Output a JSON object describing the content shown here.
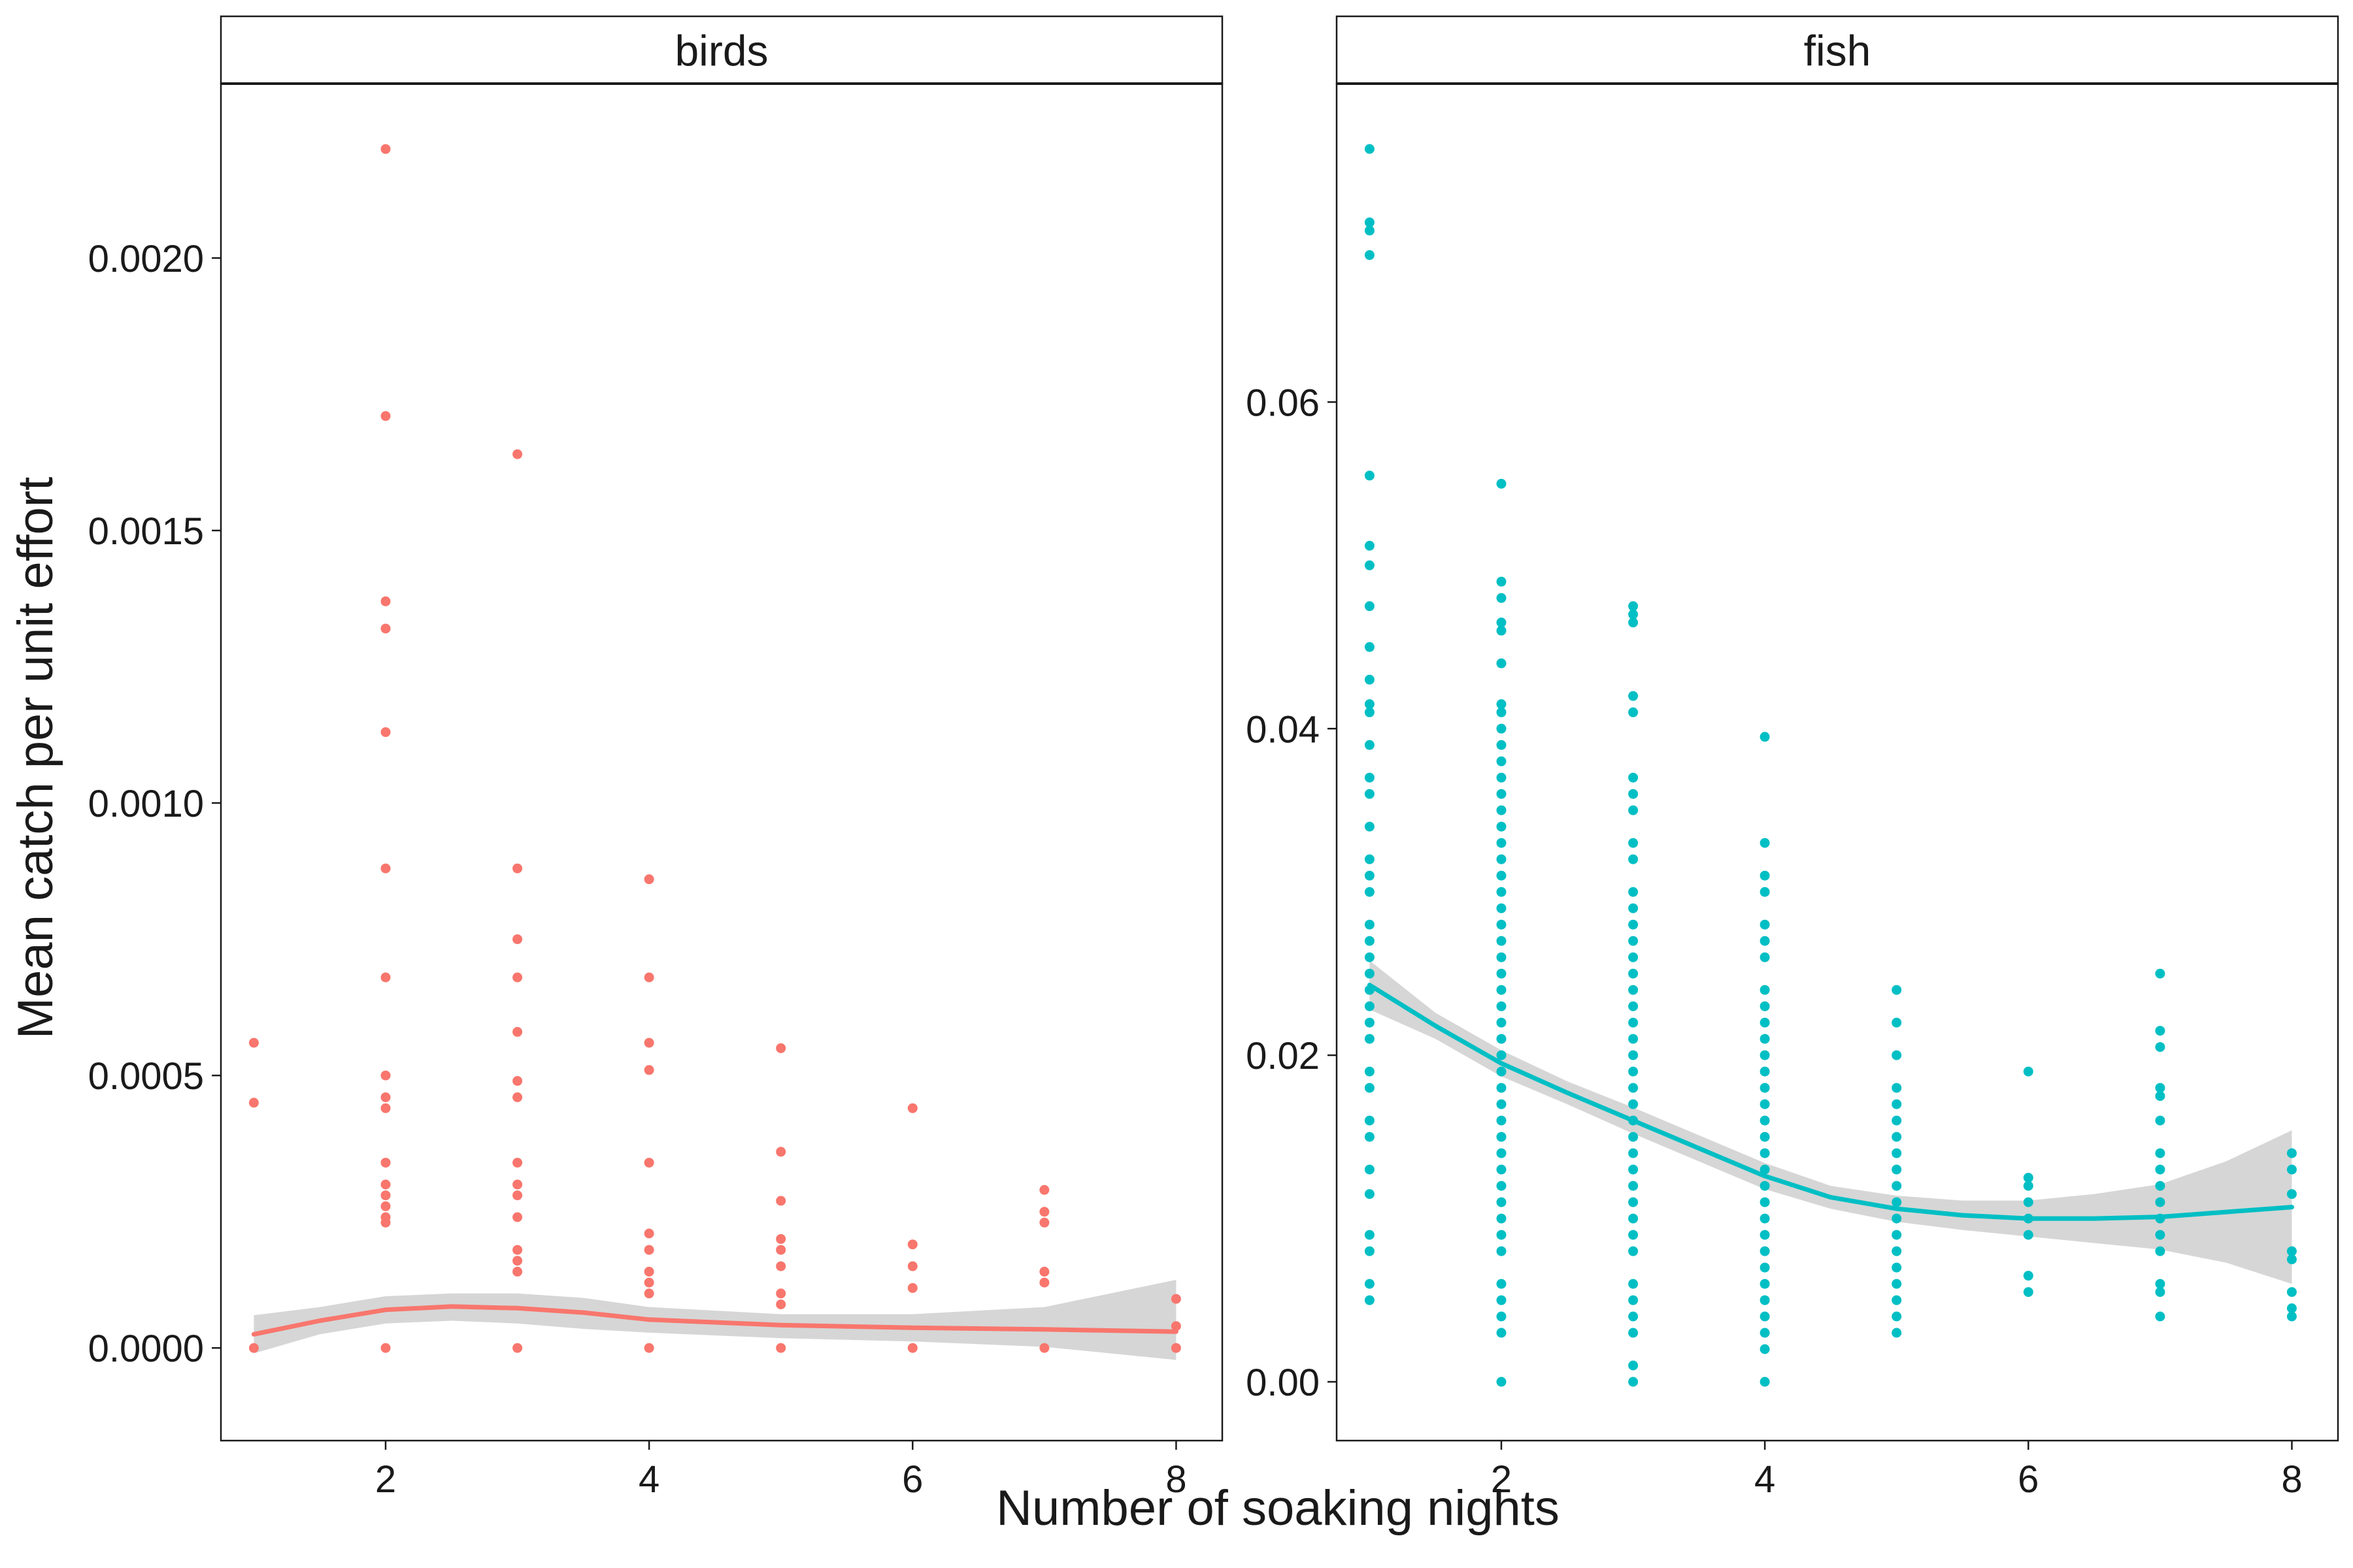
{
  "figure": {
    "xlabel": "Number of soaking nights",
    "ylabel": "Mean catch per unit effort"
  },
  "colors": {
    "birds": "#F8766D",
    "fish": "#00BFC4",
    "ribbon": "#d6d6d6",
    "strip_fill": "#ffffff",
    "panel_border": "#1a1a1a"
  },
  "chart_data": [
    {
      "type": "scatter",
      "panel": "birds",
      "title": "birds",
      "xlim": [
        0.75,
        8.35
      ],
      "ylim": [
        -0.00017,
        0.00232
      ],
      "xticks": [
        2,
        4,
        6,
        8
      ],
      "xtick_labels": [
        "2",
        "4",
        "6",
        "8"
      ],
      "yticks": [
        0,
        0.0005,
        0.001,
        0.0015,
        0.002
      ],
      "ytick_labels": [
        "0.0000",
        "0.0005",
        "0.0010",
        "0.0015",
        "0.0020"
      ],
      "grid": false,
      "points": [
        [
          1,
          0
        ],
        [
          1,
          0.00045
        ],
        [
          1,
          0.00056
        ],
        [
          2,
          0
        ],
        [
          2,
          0.00023
        ],
        [
          2,
          0.00024
        ],
        [
          2,
          0.00026
        ],
        [
          2,
          0.00028
        ],
        [
          2,
          0.0003
        ],
        [
          2,
          0.00034
        ],
        [
          2,
          0.00044
        ],
        [
          2,
          0.00046
        ],
        [
          2,
          0.0005
        ],
        [
          2,
          0.00068
        ],
        [
          2,
          0.00088
        ],
        [
          2,
          0.00113
        ],
        [
          2,
          0.00132
        ],
        [
          2,
          0.00137
        ],
        [
          2,
          0.00171
        ],
        [
          2,
          0.0022
        ],
        [
          3,
          0
        ],
        [
          3,
          0.00014
        ],
        [
          3,
          0.00016
        ],
        [
          3,
          0.00018
        ],
        [
          3,
          0.00024
        ],
        [
          3,
          0.00028
        ],
        [
          3,
          0.0003
        ],
        [
          3,
          0.00034
        ],
        [
          3,
          0.00046
        ],
        [
          3,
          0.00049
        ],
        [
          3,
          0.00058
        ],
        [
          3,
          0.00068
        ],
        [
          3,
          0.00075
        ],
        [
          3,
          0.00088
        ],
        [
          3,
          0.00164
        ],
        [
          4,
          0
        ],
        [
          4,
          0.0001
        ],
        [
          4,
          0.00012
        ],
        [
          4,
          0.00014
        ],
        [
          4,
          0.00018
        ],
        [
          4,
          0.00021
        ],
        [
          4,
          0.00034
        ],
        [
          4,
          0.00051
        ],
        [
          4,
          0.00056
        ],
        [
          4,
          0.00068
        ],
        [
          4,
          0.00086
        ],
        [
          5,
          0
        ],
        [
          5,
          8e-05
        ],
        [
          5,
          0.0001
        ],
        [
          5,
          0.00015
        ],
        [
          5,
          0.00018
        ],
        [
          5,
          0.0002
        ],
        [
          5,
          0.00027
        ],
        [
          5,
          0.00036
        ],
        [
          5,
          0.00055
        ],
        [
          6,
          0
        ],
        [
          6,
          0.00011
        ],
        [
          6,
          0.00015
        ],
        [
          6,
          0.00019
        ],
        [
          6,
          0.00044
        ],
        [
          7,
          0
        ],
        [
          7,
          0.00012
        ],
        [
          7,
          0.00014
        ],
        [
          7,
          0.00023
        ],
        [
          7,
          0.00025
        ],
        [
          7,
          0.00029
        ],
        [
          8,
          0
        ],
        [
          8,
          4e-05
        ],
        [
          8,
          9e-05
        ]
      ],
      "smooth": {
        "x": [
          1,
          1.5,
          2,
          2.5,
          3,
          3.5,
          4,
          5,
          6,
          7,
          8
        ],
        "y": [
          2.5e-05,
          5e-05,
          7e-05,
          7.6e-05,
          7.3e-05,
          6.5e-05,
          5.2e-05,
          4.2e-05,
          3.7e-05,
          3.4e-05,
          3e-05
        ],
        "lower": [
          -1e-05,
          2.5e-05,
          4.5e-05,
          5e-05,
          4.5e-05,
          3.5e-05,
          2.8e-05,
          1.8e-05,
          1.2e-05,
          2e-06,
          -2.2e-05
        ],
        "upper": [
          6e-05,
          7.5e-05,
          9.5e-05,
          0.0001,
          0.0001,
          9.2e-05,
          7.5e-05,
          6.2e-05,
          6.2e-05,
          7.5e-05,
          0.000125
        ]
      }
    },
    {
      "type": "scatter",
      "panel": "fish",
      "title": "fish",
      "xlim": [
        0.75,
        8.35
      ],
      "ylim": [
        -0.0036,
        0.0795
      ],
      "xticks": [
        2,
        4,
        6,
        8
      ],
      "xtick_labels": [
        "2",
        "4",
        "6",
        "8"
      ],
      "yticks": [
        0,
        0.02,
        0.04,
        0.06
      ],
      "ytick_labels": [
        "0.00",
        "0.02",
        "0.04",
        "0.06"
      ],
      "grid": false,
      "points": [
        [
          1,
          0.005
        ],
        [
          1,
          0.006
        ],
        [
          1,
          0.008
        ],
        [
          1,
          0.009
        ],
        [
          1,
          0.0115
        ],
        [
          1,
          0.013
        ],
        [
          1,
          0.015
        ],
        [
          1,
          0.016
        ],
        [
          1,
          0.018
        ],
        [
          1,
          0.019
        ],
        [
          1,
          0.021
        ],
        [
          1,
          0.022
        ],
        [
          1,
          0.023
        ],
        [
          1,
          0.024
        ],
        [
          1,
          0.025
        ],
        [
          1,
          0.026
        ],
        [
          1,
          0.027
        ],
        [
          1,
          0.028
        ],
        [
          1,
          0.03
        ],
        [
          1,
          0.031
        ],
        [
          1,
          0.032
        ],
        [
          1,
          0.034
        ],
        [
          1,
          0.036
        ],
        [
          1,
          0.037
        ],
        [
          1,
          0.039
        ],
        [
          1,
          0.041
        ],
        [
          1,
          0.0415
        ],
        [
          1,
          0.043
        ],
        [
          1,
          0.045
        ],
        [
          1,
          0.0475
        ],
        [
          1,
          0.05
        ],
        [
          1,
          0.0512
        ],
        [
          1,
          0.0555
        ],
        [
          1,
          0.069
        ],
        [
          1,
          0.0705
        ],
        [
          1,
          0.071
        ],
        [
          1,
          0.0755
        ],
        [
          2,
          0
        ],
        [
          2,
          0.003
        ],
        [
          2,
          0.004
        ],
        [
          2,
          0.005
        ],
        [
          2,
          0.006
        ],
        [
          2,
          0.008
        ],
        [
          2,
          0.009
        ],
        [
          2,
          0.01
        ],
        [
          2,
          0.011
        ],
        [
          2,
          0.012
        ],
        [
          2,
          0.013
        ],
        [
          2,
          0.014
        ],
        [
          2,
          0.015
        ],
        [
          2,
          0.016
        ],
        [
          2,
          0.017
        ],
        [
          2,
          0.018
        ],
        [
          2,
          0.019
        ],
        [
          2,
          0.02
        ],
        [
          2,
          0.021
        ],
        [
          2,
          0.022
        ],
        [
          2,
          0.023
        ],
        [
          2,
          0.024
        ],
        [
          2,
          0.025
        ],
        [
          2,
          0.026
        ],
        [
          2,
          0.027
        ],
        [
          2,
          0.028
        ],
        [
          2,
          0.029
        ],
        [
          2,
          0.03
        ],
        [
          2,
          0.031
        ],
        [
          2,
          0.032
        ],
        [
          2,
          0.033
        ],
        [
          2,
          0.034
        ],
        [
          2,
          0.035
        ],
        [
          2,
          0.036
        ],
        [
          2,
          0.037
        ],
        [
          2,
          0.038
        ],
        [
          2,
          0.039
        ],
        [
          2,
          0.04
        ],
        [
          2,
          0.041
        ],
        [
          2,
          0.0415
        ],
        [
          2,
          0.044
        ],
        [
          2,
          0.046
        ],
        [
          2,
          0.0465
        ],
        [
          2,
          0.048
        ],
        [
          2,
          0.049
        ],
        [
          2,
          0.055
        ],
        [
          3,
          0
        ],
        [
          3,
          0.001
        ],
        [
          3,
          0.003
        ],
        [
          3,
          0.004
        ],
        [
          3,
          0.005
        ],
        [
          3,
          0.006
        ],
        [
          3,
          0.008
        ],
        [
          3,
          0.009
        ],
        [
          3,
          0.01
        ],
        [
          3,
          0.011
        ],
        [
          3,
          0.012
        ],
        [
          3,
          0.013
        ],
        [
          3,
          0.014
        ],
        [
          3,
          0.015
        ],
        [
          3,
          0.016
        ],
        [
          3,
          0.017
        ],
        [
          3,
          0.018
        ],
        [
          3,
          0.019
        ],
        [
          3,
          0.02
        ],
        [
          3,
          0.021
        ],
        [
          3,
          0.022
        ],
        [
          3,
          0.023
        ],
        [
          3,
          0.024
        ],
        [
          3,
          0.025
        ],
        [
          3,
          0.026
        ],
        [
          3,
          0.027
        ],
        [
          3,
          0.028
        ],
        [
          3,
          0.029
        ],
        [
          3,
          0.03
        ],
        [
          3,
          0.032
        ],
        [
          3,
          0.033
        ],
        [
          3,
          0.035
        ],
        [
          3,
          0.036
        ],
        [
          3,
          0.037
        ],
        [
          3,
          0.041
        ],
        [
          3,
          0.042
        ],
        [
          3,
          0.0465
        ],
        [
          3,
          0.047
        ],
        [
          3,
          0.0475
        ],
        [
          4,
          0
        ],
        [
          4,
          0.002
        ],
        [
          4,
          0.003
        ],
        [
          4,
          0.004
        ],
        [
          4,
          0.005
        ],
        [
          4,
          0.006
        ],
        [
          4,
          0.007
        ],
        [
          4,
          0.008
        ],
        [
          4,
          0.009
        ],
        [
          4,
          0.01
        ],
        [
          4,
          0.011
        ],
        [
          4,
          0.012
        ],
        [
          4,
          0.013
        ],
        [
          4,
          0.014
        ],
        [
          4,
          0.015
        ],
        [
          4,
          0.016
        ],
        [
          4,
          0.017
        ],
        [
          4,
          0.018
        ],
        [
          4,
          0.019
        ],
        [
          4,
          0.02
        ],
        [
          4,
          0.021
        ],
        [
          4,
          0.022
        ],
        [
          4,
          0.023
        ],
        [
          4,
          0.024
        ],
        [
          4,
          0.026
        ],
        [
          4,
          0.027
        ],
        [
          4,
          0.028
        ],
        [
          4,
          0.03
        ],
        [
          4,
          0.031
        ],
        [
          4,
          0.033
        ],
        [
          4,
          0.0395
        ],
        [
          5,
          0.003
        ],
        [
          5,
          0.004
        ],
        [
          5,
          0.005
        ],
        [
          5,
          0.006
        ],
        [
          5,
          0.007
        ],
        [
          5,
          0.008
        ],
        [
          5,
          0.009
        ],
        [
          5,
          0.01
        ],
        [
          5,
          0.011
        ],
        [
          5,
          0.012
        ],
        [
          5,
          0.013
        ],
        [
          5,
          0.014
        ],
        [
          5,
          0.015
        ],
        [
          5,
          0.016
        ],
        [
          5,
          0.017
        ],
        [
          5,
          0.018
        ],
        [
          5,
          0.02
        ],
        [
          5,
          0.022
        ],
        [
          5,
          0.024
        ],
        [
          6,
          0.0055
        ],
        [
          6,
          0.0065
        ],
        [
          6,
          0.009
        ],
        [
          6,
          0.01
        ],
        [
          6,
          0.011
        ],
        [
          6,
          0.012
        ],
        [
          6,
          0.0125
        ],
        [
          6,
          0.019
        ],
        [
          7,
          0.004
        ],
        [
          7,
          0.0055
        ],
        [
          7,
          0.006
        ],
        [
          7,
          0.008
        ],
        [
          7,
          0.009
        ],
        [
          7,
          0.01
        ],
        [
          7,
          0.011
        ],
        [
          7,
          0.012
        ],
        [
          7,
          0.013
        ],
        [
          7,
          0.014
        ],
        [
          7,
          0.016
        ],
        [
          7,
          0.0175
        ],
        [
          7,
          0.018
        ],
        [
          7,
          0.0205
        ],
        [
          7,
          0.0215
        ],
        [
          7,
          0.025
        ],
        [
          8,
          0.004
        ],
        [
          8,
          0.0045
        ],
        [
          8,
          0.0055
        ],
        [
          8,
          0.0075
        ],
        [
          8,
          0.008
        ],
        [
          8,
          0.0115
        ],
        [
          8,
          0.013
        ],
        [
          8,
          0.014
        ]
      ],
      "smooth": {
        "x": [
          1,
          1.5,
          2,
          2.5,
          3,
          3.5,
          4,
          4.5,
          5,
          5.5,
          6,
          6.5,
          7,
          7.5,
          8
        ],
        "y": [
          0.0243,
          0.0218,
          0.0195,
          0.0177,
          0.016,
          0.0143,
          0.0126,
          0.0113,
          0.0106,
          0.0102,
          0.01,
          0.01,
          0.0101,
          0.0104,
          0.0107
        ],
        "lower": [
          0.0228,
          0.021,
          0.0187,
          0.017,
          0.0152,
          0.0135,
          0.0118,
          0.0106,
          0.0098,
          0.0093,
          0.0089,
          0.0085,
          0.0081,
          0.0073,
          0.006
        ],
        "upper": [
          0.0258,
          0.0226,
          0.0203,
          0.0184,
          0.0168,
          0.0151,
          0.0134,
          0.012,
          0.0114,
          0.0111,
          0.0111,
          0.0115,
          0.0121,
          0.0135,
          0.0154
        ]
      }
    }
  ]
}
